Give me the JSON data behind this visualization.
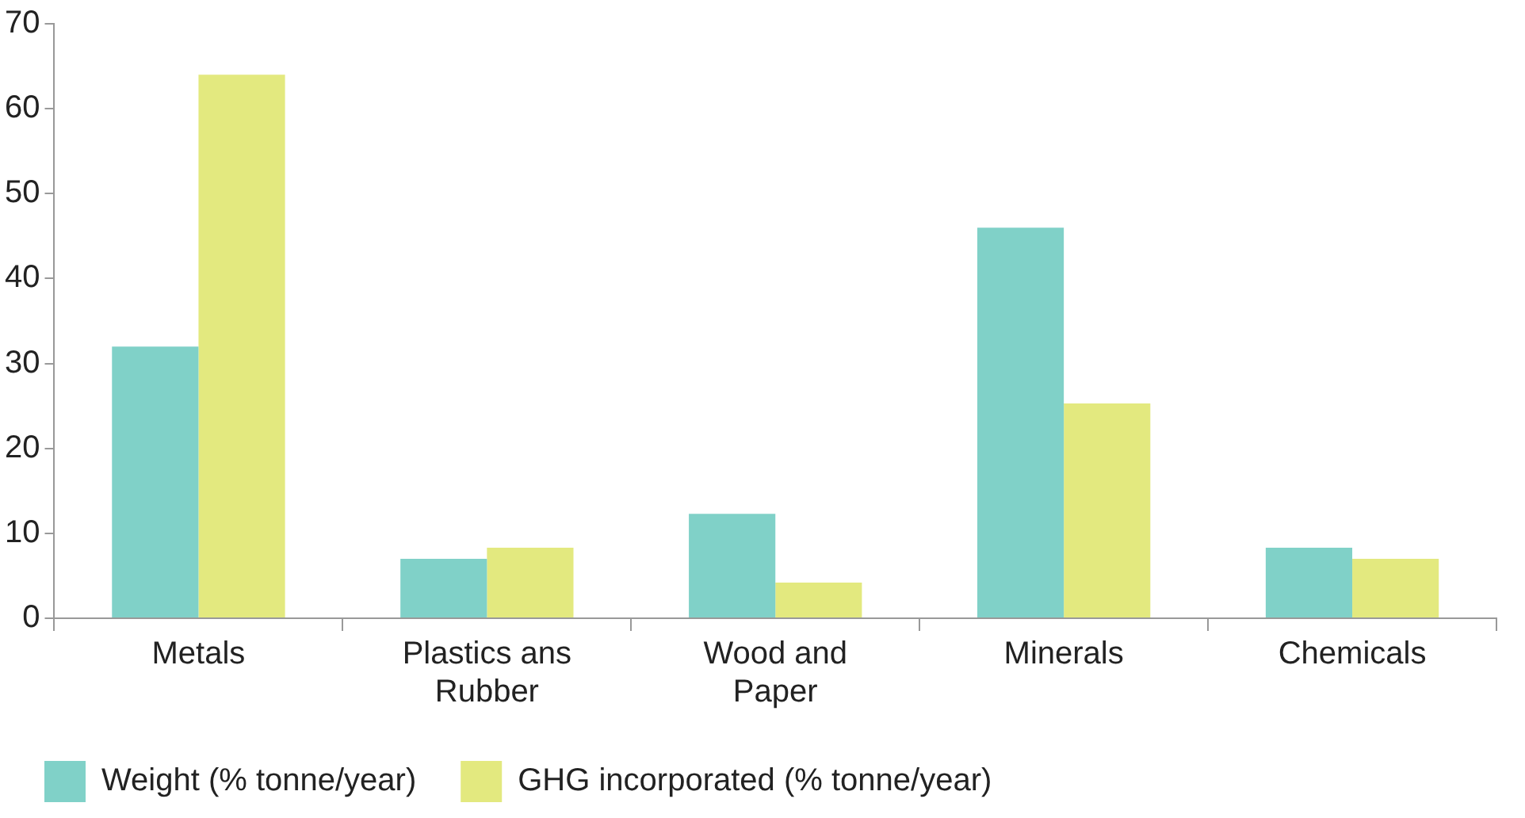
{
  "chart_data": {
    "type": "bar",
    "categories": [
      "Metals",
      "Plastics ans Rubber",
      "Wood and Paper",
      "Minerals",
      "Chemicals"
    ],
    "series": [
      {
        "name": "Weight (% tonne/year)",
        "color": "#80d1c8",
        "values": [
          32,
          7,
          12.3,
          46,
          8.3
        ]
      },
      {
        "name": "GHG incorporated (% tonne/year)",
        "color": "#e3e97f",
        "values": [
          64,
          8.3,
          4.2,
          25.3,
          7
        ]
      }
    ],
    "ylim": [
      0,
      70
    ],
    "yticks": [
      0,
      10,
      20,
      30,
      40,
      50,
      60,
      70
    ],
    "grid": false,
    "legend": "bottom left"
  }
}
